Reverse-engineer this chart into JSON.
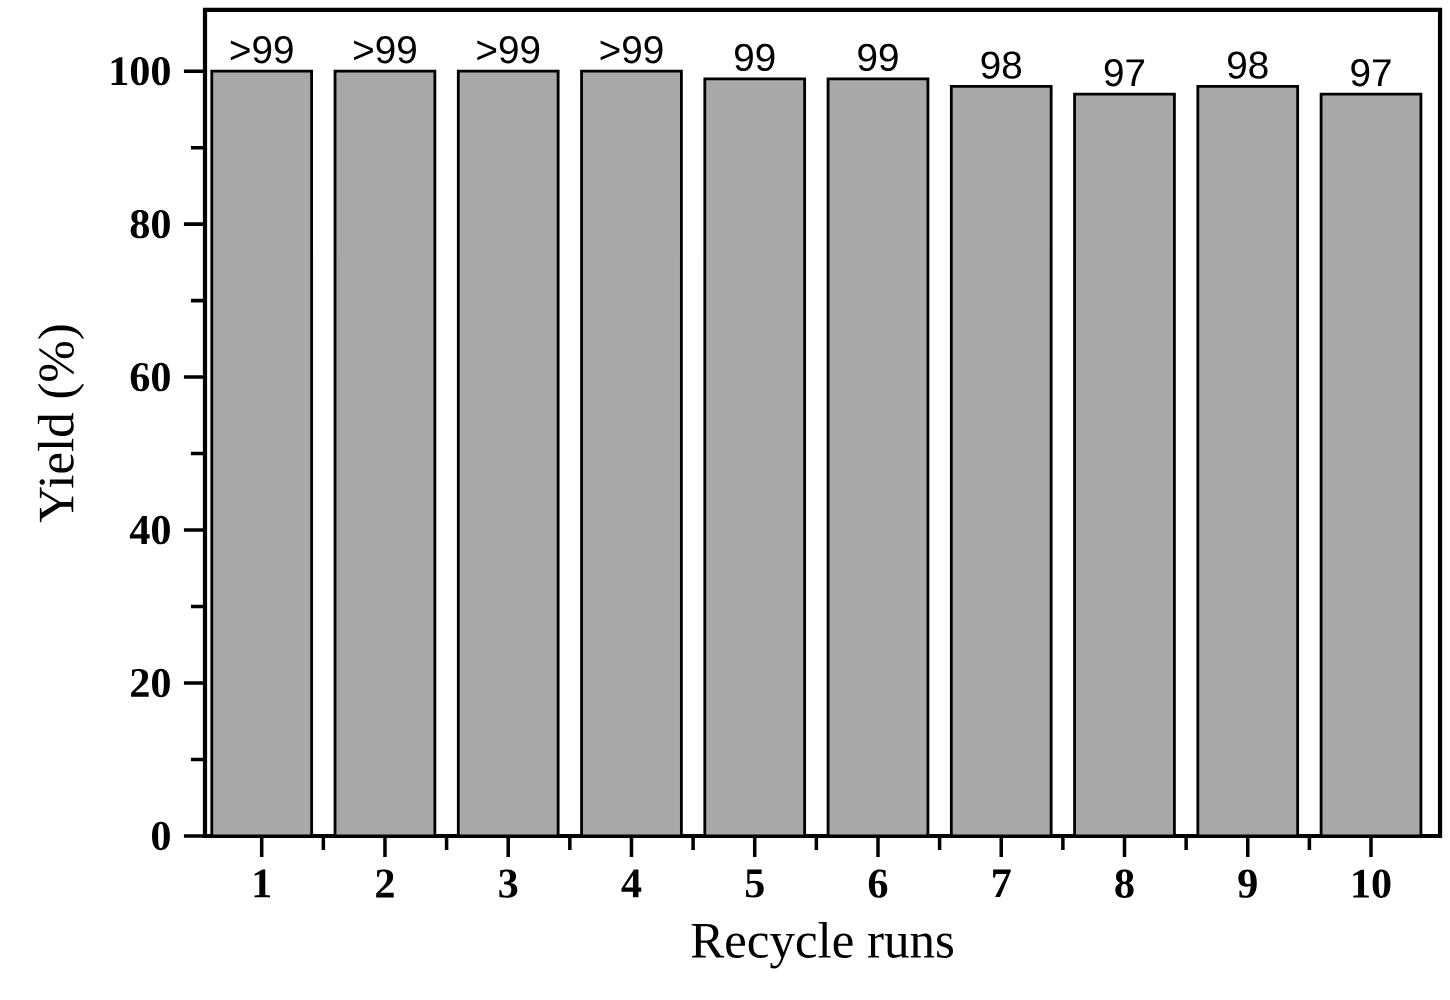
{
  "chart_data": {
    "type": "bar",
    "xlabel": "Recycle runs",
    "ylabel": "Yield (%)",
    "categories": [
      "1",
      "2",
      "3",
      "4",
      "5",
      "6",
      "7",
      "8",
      "9",
      "10"
    ],
    "values": [
      100,
      100,
      100,
      100,
      99,
      99,
      98,
      97,
      98,
      97
    ],
    "value_labels": [
      ">99",
      ">99",
      ">99",
      ">99",
      "99",
      "99",
      "98",
      "97",
      "98",
      "97"
    ],
    "color": "#a8a8a8",
    "ylim": [
      0,
      108
    ],
    "yticks": [
      0,
      20,
      40,
      60,
      80,
      100
    ]
  }
}
